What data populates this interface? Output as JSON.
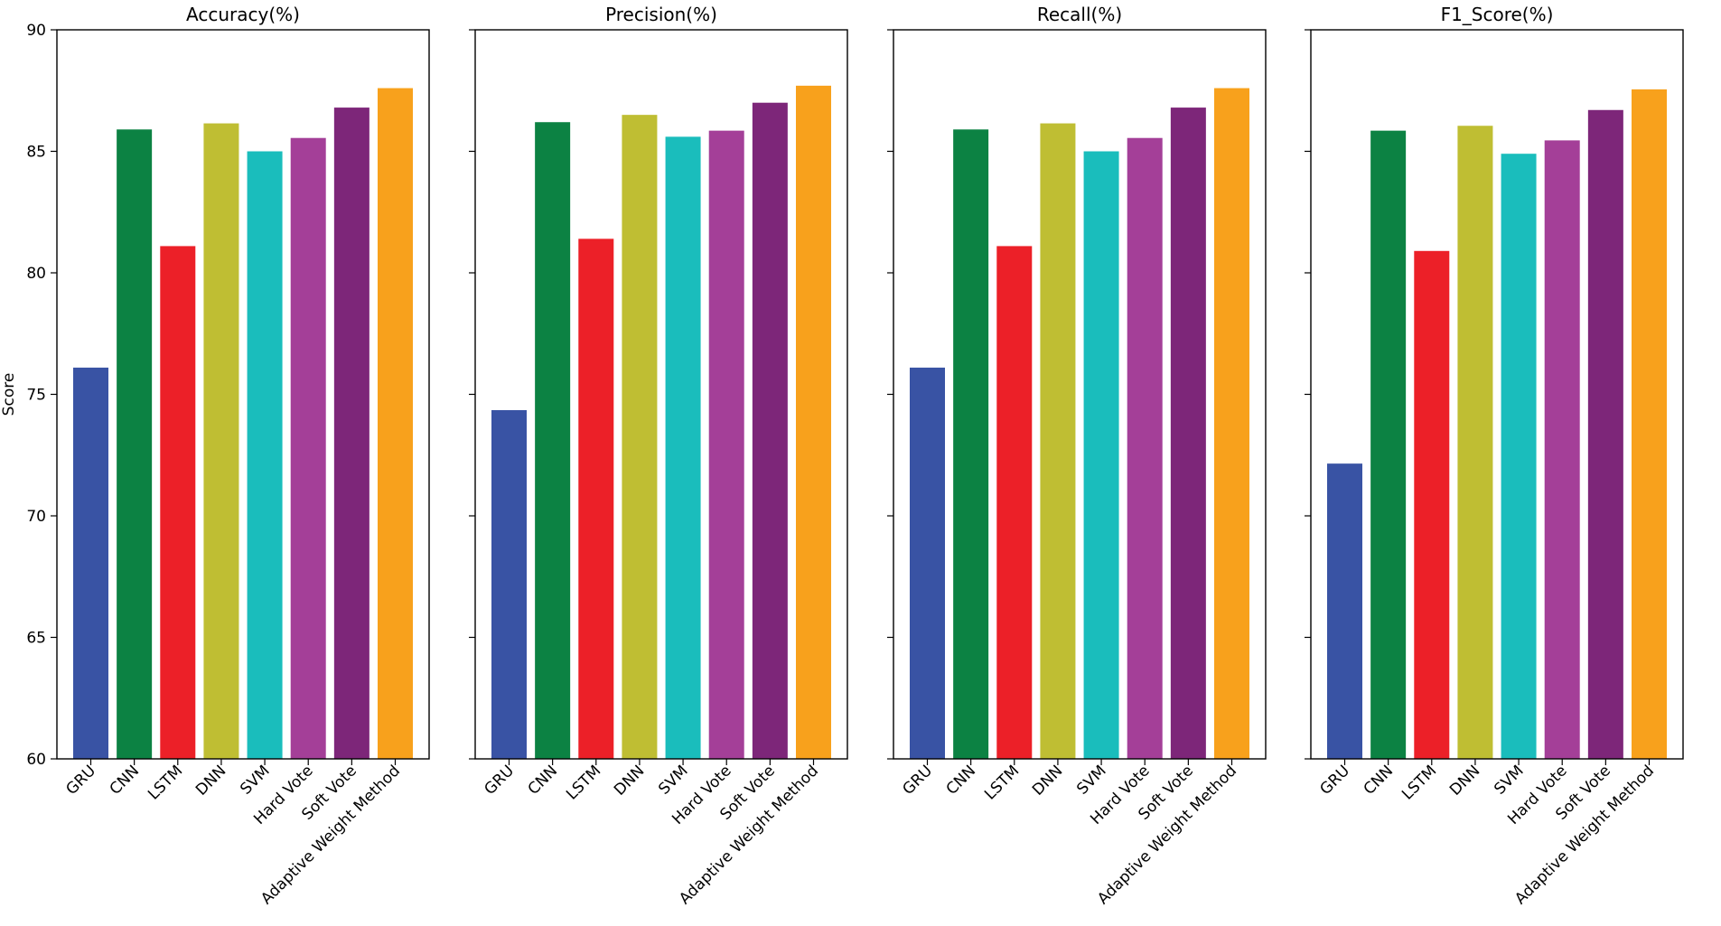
{
  "chart_data": {
    "type": "bar",
    "ylabel": "Score",
    "ylim": [
      60,
      90
    ],
    "yticks": [
      60,
      65,
      70,
      75,
      80,
      85,
      90
    ],
    "categories": [
      "GRU",
      "CNN",
      "LSTM",
      "DNN",
      "SVM",
      "Hard Vote",
      "Soft Vote",
      "Adaptive Weight Method"
    ],
    "colors": [
      "#3953a4",
      "#0c8243",
      "#ec2028",
      "#bfbe33",
      "#1abdbc",
      "#a43f98",
      "#7d2679",
      "#f8a11c"
    ],
    "axes_color": "#000000",
    "grid": false,
    "legend": "none",
    "subplots": [
      {
        "title": "Accuracy(%)",
        "values": [
          76.1,
          85.9,
          81.1,
          86.15,
          85.0,
          85.55,
          86.8,
          87.6
        ]
      },
      {
        "title": "Precision(%)",
        "values": [
          74.35,
          86.2,
          81.4,
          86.5,
          85.6,
          85.85,
          87.0,
          87.7
        ]
      },
      {
        "title": "Recall(%)",
        "values": [
          76.1,
          85.9,
          81.1,
          86.15,
          85.0,
          85.55,
          86.8,
          87.6
        ]
      },
      {
        "title": "F1_Score(%)",
        "values": [
          72.15,
          85.85,
          80.9,
          86.05,
          84.9,
          85.45,
          86.7,
          87.55
        ]
      }
    ]
  }
}
